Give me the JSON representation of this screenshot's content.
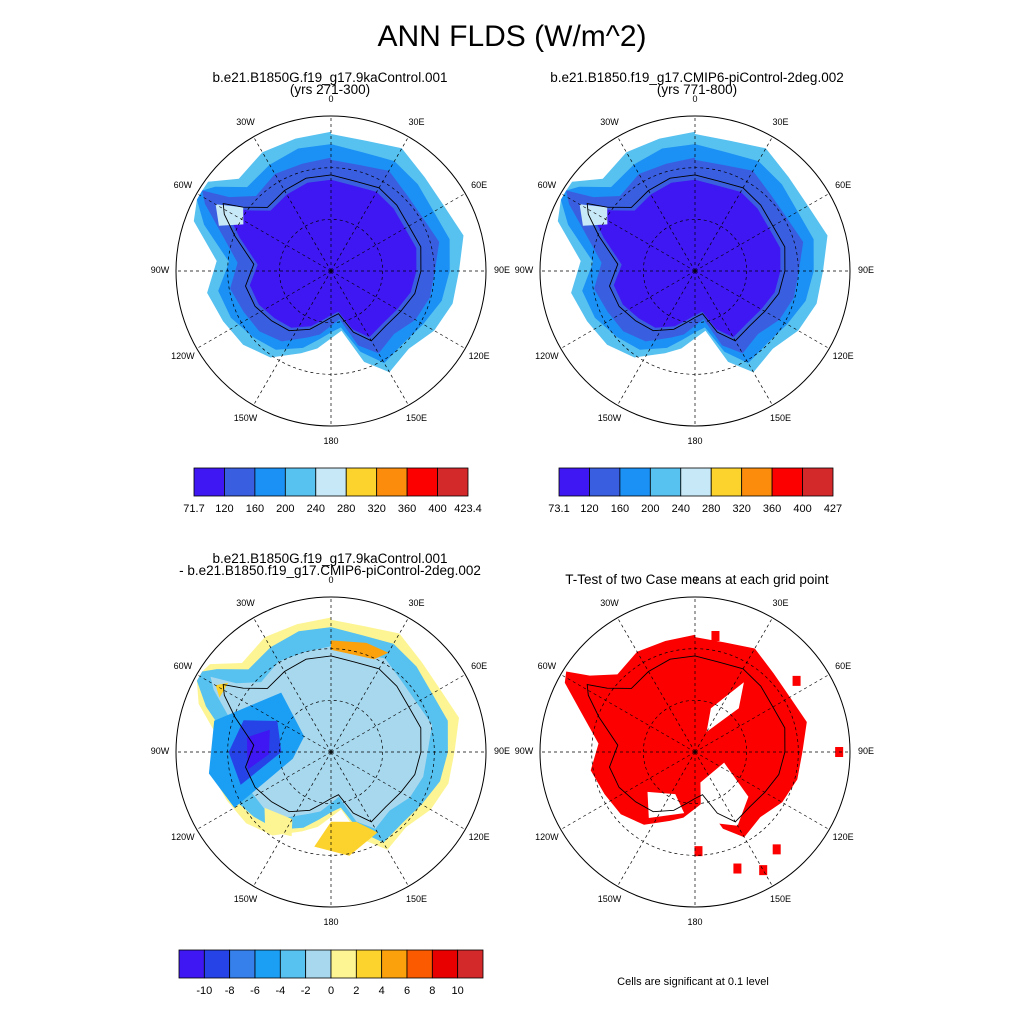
{
  "main_title": "ANN FLDS (W/m^2)",
  "panels": [
    {
      "title_line1": "b.e21.B1850G.f19_g17.9kaControl.001",
      "title_line2": "(yrs 271-300)"
    },
    {
      "title_line1": "b.e21.B1850.f19_g17.CMIP6-piControl-2deg.002",
      "title_line2": "(yrs 771-800)"
    },
    {
      "title_line1": "b.e21.B1850G.f19_g17.9kaControl.001",
      "title_line2": "- b.e21.B1850.f19_g17.CMIP6-piControl-2deg.002"
    },
    {
      "title_line1": "T-Test of two Case means at each grid point",
      "title_line2": ""
    }
  ],
  "lon_labels": [
    "0",
    "30E",
    "60E",
    "90E",
    "120E",
    "150E",
    "180",
    "150W",
    "120W",
    "90W",
    "60W",
    "30W"
  ],
  "colorbars": {
    "abs": {
      "colors": [
        "#3f17f2",
        "#3a5ee0",
        "#1b90f5",
        "#57c1f0",
        "#c7e8f6",
        "#fcd22c",
        "#fb8c0c",
        "#fc0000",
        "#d3292b"
      ]
    },
    "diff": {
      "colors": [
        "#3f17f2",
        "#2643e8",
        "#3580eb",
        "#1b9ff5",
        "#57c1f0",
        "#a8d8ee",
        "#fdf594",
        "#fcd22c",
        "#fba10c",
        "#fc5a00",
        "#e80000",
        "#d3292b"
      ],
      "labels": [
        "-10",
        "-8",
        "-6",
        "-4",
        "-2",
        "0",
        "2",
        "4",
        "6",
        "8",
        "10"
      ]
    }
  },
  "colorbar_labels": {
    "panel1": [
      "71.7",
      "120",
      "160",
      "200",
      "240",
      "280",
      "320",
      "360",
      "400",
      "423.4"
    ],
    "panel2": [
      "73.1",
      "120",
      "160",
      "200",
      "240",
      "280",
      "320",
      "360",
      "400",
      "427"
    ]
  },
  "significance_note": "Cells are significant at 0.1 level",
  "colors": {
    "significant": "#fc0000"
  }
}
